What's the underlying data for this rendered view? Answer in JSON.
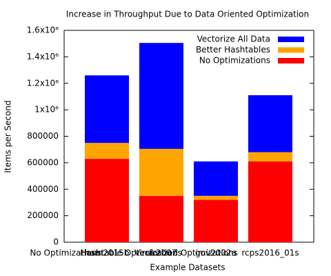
{
  "chart_data": {
    "type": "stacked_bar",
    "title": "Increase in Throughput Due to Data Oriented Optimization",
    "xlabel": "Example Datasets",
    "ylabel": "Items per Second",
    "categories": [
      "ham2015b",
      "uk2007",
      "gov2002a",
      "rcps2016_01s"
    ],
    "extra_x_labels": [
      "No Optimizations",
      "Hashtable Optimizations",
      "Vectorized Optimizations"
    ],
    "series": [
      {
        "name": "No Optimizations",
        "color": "#ff0000",
        "values": [
          630000,
          350000,
          320000,
          610000
        ]
      },
      {
        "name": "Better Hashtables",
        "color": "#ffa500",
        "values": [
          120000,
          355000,
          30000,
          70000
        ]
      },
      {
        "name": "Vectorize All Data",
        "color": "#0000ff",
        "values": [
          510000,
          800000,
          260000,
          430000
        ]
      }
    ],
    "ylim": [
      0,
      1600000
    ],
    "yticks": [
      0,
      200000,
      400000,
      600000,
      800000,
      {
        "value": 1000000,
        "label": "1x10⁶"
      },
      {
        "value": 1200000,
        "label": "1.2x10⁶"
      },
      {
        "value": 1400000,
        "label": "1.4x10⁶"
      },
      {
        "value": 1600000,
        "label": "1.6x10⁶"
      }
    ],
    "legend": "top-right"
  }
}
